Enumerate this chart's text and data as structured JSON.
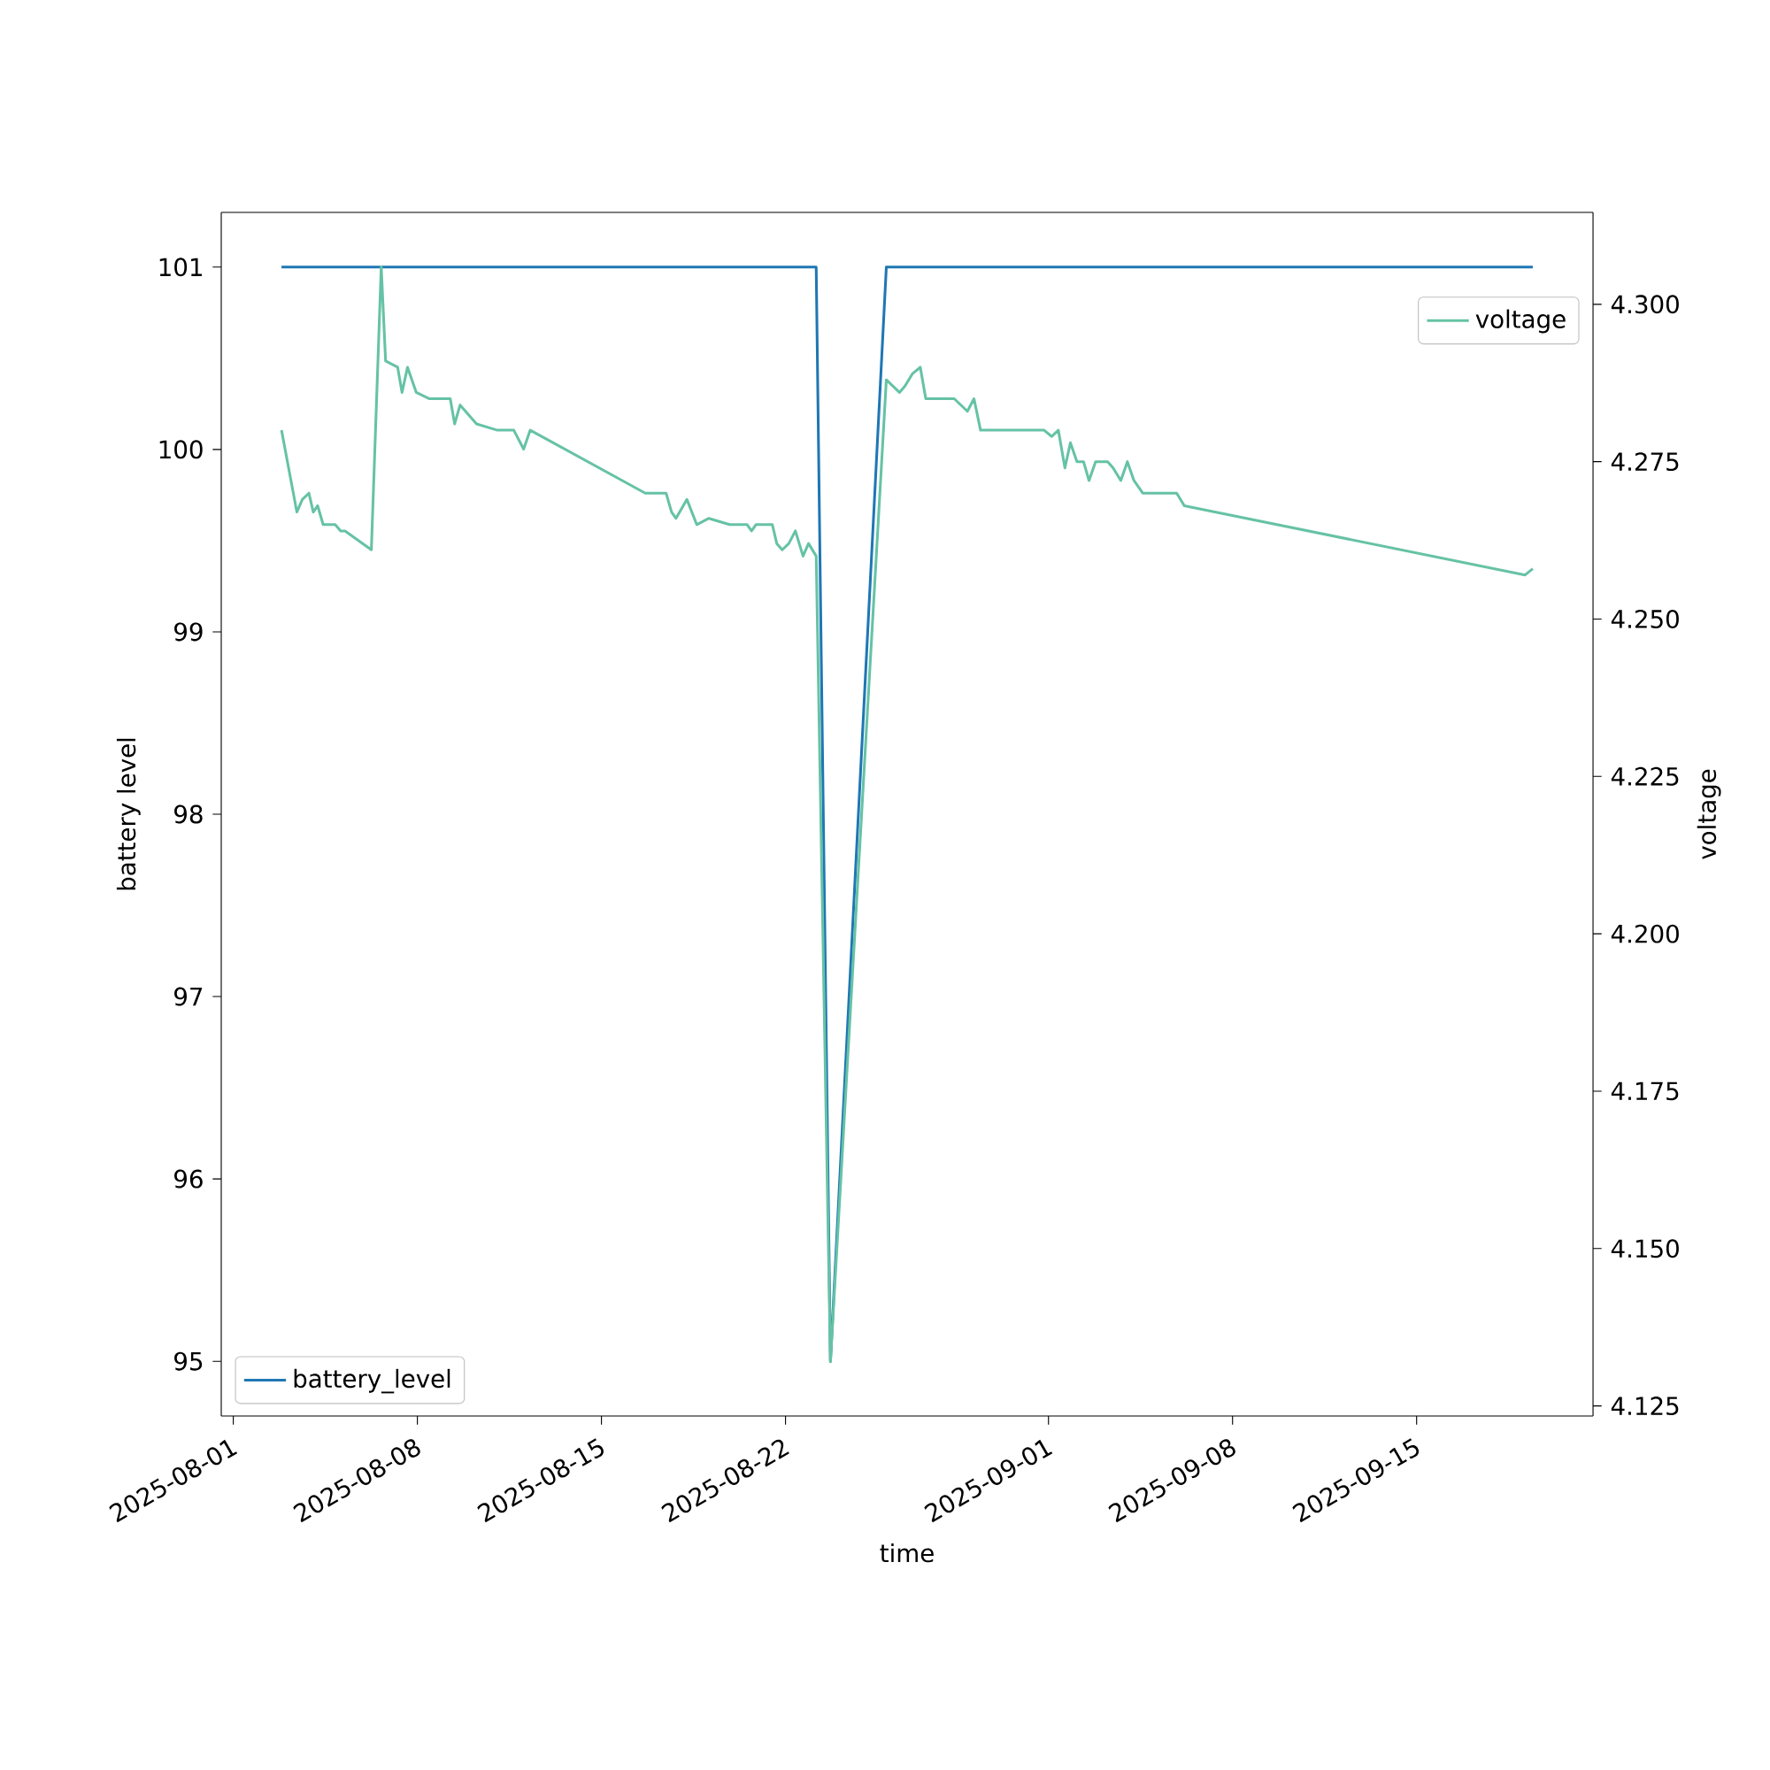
{
  "chart_data": {
    "type": "line",
    "legend": "bottom left",
    "xlabel": "time",
    "ylabel": "battery level",
    "y2label": "voltage",
    "xlim": [
      "2025-07-31T13:00",
      "2025-09-21T17:00"
    ],
    "xticks": [
      "2025-08-01",
      "2025-08-08",
      "2025-08-15",
      "2025-08-22",
      "2025-09-01",
      "2025-09-08",
      "2025-09-15"
    ],
    "ylim": [
      94.7,
      101.3
    ],
    "yticks": [
      95,
      96,
      97,
      98,
      99,
      100,
      101
    ],
    "y2lim": [
      4.1234,
      4.3146
    ],
    "y2ticks": [
      {
        "value": 4.125,
        "label": "4.125"
      },
      {
        "value": 4.15,
        "label": "4.150"
      },
      {
        "value": 4.175,
        "label": "4.175"
      },
      {
        "value": 4.2,
        "label": "4.200"
      },
      {
        "value": 4.225,
        "label": "4.225"
      },
      {
        "value": 4.25,
        "label": "4.250"
      },
      {
        "value": 4.275,
        "label": "4.275"
      },
      {
        "value": 4.3,
        "label": "4.300"
      }
    ],
    "series": [
      {
        "name": "battery_level",
        "color": "#1f77b4",
        "x": [
          "2025-08-02T20:00",
          "2025-08-23T04:00",
          "2025-08-23T17:00",
          "2025-08-25T20:00",
          "2025-09-19T10:00"
        ],
        "values": [
          101,
          101,
          95,
          101,
          101
        ]
      },
      {
        "name": "voltage",
        "color": "#66c2a5",
        "axis": "y2",
        "x": [
          "2025-08-02T20:00",
          "2025-08-03T10:00",
          "2025-08-03T15:00",
          "2025-08-03T21:00",
          "2025-08-04T01:00",
          "2025-08-04T05:00",
          "2025-08-04T10:00",
          "2025-08-04T21:00",
          "2025-08-05T02:00",
          "2025-08-05T06:00",
          "2025-08-06T06:00",
          "2025-08-06T15:00",
          "2025-08-06T19:00",
          "2025-08-07T06:00",
          "2025-08-07T10:00",
          "2025-08-07T15:00",
          "2025-08-07T23:00",
          "2025-08-08T11:00",
          "2025-08-09T06:00",
          "2025-08-09T10:00",
          "2025-08-09T15:00",
          "2025-08-10T06:00",
          "2025-08-11T01:00",
          "2025-08-11T16:00",
          "2025-08-12T01:00",
          "2025-08-12T07:00",
          "2025-08-16T16:00",
          "2025-08-17T11:00",
          "2025-08-17T16:00",
          "2025-08-17T20:00",
          "2025-08-18T06:00",
          "2025-08-18T15:00",
          "2025-08-19T02:00",
          "2025-08-19T21:00",
          "2025-08-20T13:00",
          "2025-08-20T17:00",
          "2025-08-20T21:00",
          "2025-08-21T12:00",
          "2025-08-21T16:00",
          "2025-08-21T21:00",
          "2025-08-22T03:00",
          "2025-08-22T09:00",
          "2025-08-22T16:00",
          "2025-08-22T21:00",
          "2025-08-23T04:00",
          "2025-08-23T17:00",
          "2025-08-25T20:00",
          "2025-08-26T08:00",
          "2025-08-26T13:00",
          "2025-08-26T20:00",
          "2025-08-27T03:00",
          "2025-08-27T08:00",
          "2025-08-28T10:00",
          "2025-08-28T22:00",
          "2025-08-29T04:00",
          "2025-08-29T10:00",
          "2025-08-31T20:00",
          "2025-09-01T03:00",
          "2025-09-01T09:00",
          "2025-09-01T15:00",
          "2025-09-01T20:00",
          "2025-09-02T02:00",
          "2025-09-02T08:00",
          "2025-09-02T13:00",
          "2025-09-02T19:00",
          "2025-09-03T06:00",
          "2025-09-03T11:00",
          "2025-09-03T18:00",
          "2025-09-04T00:00",
          "2025-09-04T06:00",
          "2025-09-04T14:00",
          "2025-09-05T21:00",
          "2025-09-06T04:00",
          "2025-09-19T03:00",
          "2025-09-19T10:00"
        ],
        "values": [
          4.28,
          4.267,
          4.269,
          4.27,
          4.267,
          4.268,
          4.265,
          4.265,
          4.264,
          4.264,
          4.261,
          4.306,
          4.291,
          4.29,
          4.286,
          4.29,
          4.286,
          4.285,
          4.285,
          4.281,
          4.284,
          4.281,
          4.28,
          4.28,
          4.277,
          4.28,
          4.27,
          4.27,
          4.267,
          4.266,
          4.269,
          4.265,
          4.266,
          4.265,
          4.265,
          4.264,
          4.265,
          4.265,
          4.262,
          4.261,
          4.262,
          4.264,
          4.26,
          4.262,
          4.26,
          4.132,
          4.288,
          4.286,
          4.287,
          4.289,
          4.29,
          4.285,
          4.285,
          4.283,
          4.285,
          4.28,
          4.28,
          4.279,
          4.28,
          4.274,
          4.278,
          4.275,
          4.275,
          4.272,
          4.275,
          4.275,
          4.274,
          4.272,
          4.275,
          4.272,
          4.27,
          4.27,
          4.268,
          4.257,
          4.258
        ]
      }
    ]
  }
}
